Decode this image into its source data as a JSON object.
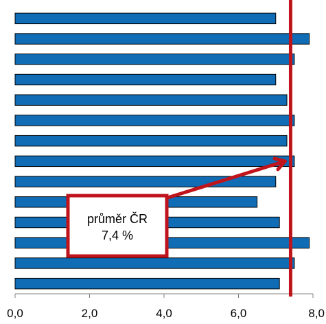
{
  "chart_data": {
    "type": "bar",
    "orientation": "horizontal",
    "values": [
      7.0,
      7.9,
      7.5,
      7.0,
      7.3,
      7.5,
      7.3,
      7.5,
      7.0,
      6.5,
      7.1,
      7.9,
      7.5,
      7.1
    ],
    "xlim": [
      0,
      8
    ],
    "x_ticks": [
      "0,0",
      "2,0",
      "4,0",
      "6,0",
      "8,0"
    ],
    "x_tick_values": [
      0,
      2,
      4,
      6,
      8
    ],
    "grid": false,
    "bar_color": "#0f6cb5",
    "reference_line": {
      "value": 7.4,
      "color": "#c0141c",
      "callout_line1": "průměr ČR",
      "callout_line2": "7,4 %",
      "arrow_target_bar_index": 7
    }
  }
}
